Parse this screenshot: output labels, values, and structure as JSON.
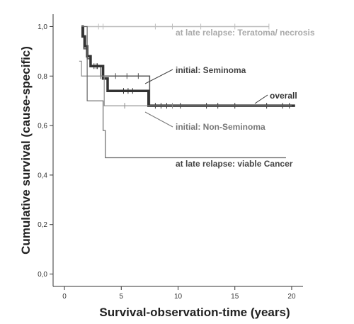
{
  "chart_data": {
    "type": "line",
    "step": true,
    "xlabel": "Survival-observation-time (years)",
    "ylabel": "Cumulative survival (cause-specific)",
    "xlim": [
      -1,
      21
    ],
    "ylim": [
      -0.05,
      1.05
    ],
    "x_ticks": [
      0,
      5,
      10,
      15,
      20
    ],
    "x_tick_labels": [
      "0",
      "5",
      "10",
      "15",
      "20"
    ],
    "y_ticks": [
      0.0,
      0.2,
      0.4,
      0.6,
      0.8,
      1.0
    ],
    "y_tick_labels": [
      "0,0",
      "0,2",
      "0,4",
      "0,6",
      "0,8",
      "1,0"
    ],
    "grid": false,
    "annotations": [
      {
        "text": "at late relapse: Teratoma/ necrosis",
        "color": "#aaaaaa"
      },
      {
        "text": "initial: Seminoma",
        "color": "#444444"
      },
      {
        "text": "overall",
        "color": "#333333"
      },
      {
        "text": "initial: Non-Seminoma",
        "color": "#777777"
      },
      {
        "text": "at late relapse: viable Cancer",
        "color": "#444444"
      }
    ],
    "series": [
      {
        "color": "#bdbdbd",
        "width": 1.5,
        "label_index": 0,
        "points": [
          [
            1.5,
            1.0
          ],
          [
            18,
            1.0
          ]
        ],
        "censored": [
          3,
          3.4,
          8,
          9.5,
          12,
          15,
          18
        ]
      },
      {
        "color": "#555555",
        "width": 1.5,
        "label_index": 1,
        "points": [
          [
            1.5,
            1.0
          ],
          [
            1.7,
            0.91
          ],
          [
            2.0,
            0.87
          ],
          [
            2.3,
            0.84
          ],
          [
            3.2,
            0.8
          ],
          [
            7.5,
            0.68
          ],
          [
            20,
            0.68
          ]
        ],
        "censored": [
          2.8,
          3.2,
          4.5,
          5.5,
          6.5
        ]
      },
      {
        "color": "#333333",
        "width": 3.5,
        "label_index": 2,
        "points": [
          [
            1.5,
            1.0
          ],
          [
            1.6,
            0.96
          ],
          [
            1.8,
            0.92
          ],
          [
            2.0,
            0.88
          ],
          [
            2.3,
            0.84
          ],
          [
            3.4,
            0.79
          ],
          [
            3.8,
            0.74
          ],
          [
            7.4,
            0.68
          ],
          [
            20.3,
            0.68
          ]
        ],
        "censored": [
          2.6,
          2.9,
          5.2,
          5.6,
          6.0,
          8.0,
          8.5,
          9.0,
          10.2,
          12.5,
          13.5,
          15.0,
          17.8,
          19.2,
          19.8
        ]
      },
      {
        "color": "#8a8a8a",
        "width": 1.2,
        "label_index": 3,
        "points": [
          [
            1.3,
            0.86
          ],
          [
            1.5,
            0.8
          ],
          [
            2.0,
            0.8
          ],
          [
            3.5,
            0.68
          ],
          [
            20,
            0.68
          ]
        ],
        "censored": [
          5.3,
          9.5
        ]
      },
      {
        "color": "#666666",
        "width": 1.2,
        "label_index": 4,
        "points": [
          [
            1.5,
            1.0
          ],
          [
            2.0,
            0.7
          ],
          [
            3.2,
            0.7
          ],
          [
            3.4,
            0.58
          ],
          [
            3.6,
            0.47
          ],
          [
            19.5,
            0.47
          ]
        ],
        "censored": []
      }
    ]
  }
}
